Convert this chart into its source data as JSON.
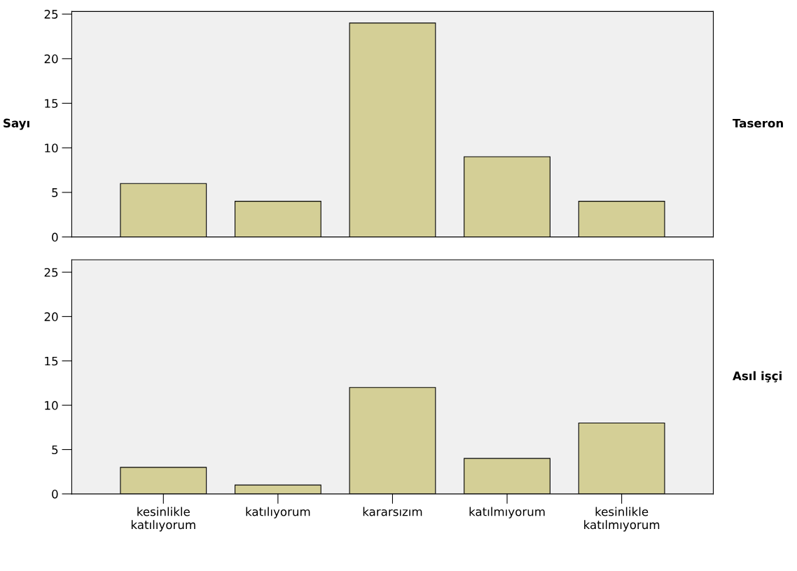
{
  "chart_data": [
    {
      "type": "bar",
      "ylabel": "Sayı",
      "annotations": [
        "Taseron"
      ],
      "categories": [
        null,
        null,
        null,
        null,
        null
      ],
      "values": [
        6,
        4,
        24,
        9,
        4
      ],
      "color": "#d4cf96",
      "ylim": [
        0,
        25.3
      ],
      "yticks": [
        0,
        5,
        10,
        15,
        20,
        25
      ],
      "grid": false,
      "tick_labels": "y"
    },
    {
      "type": "bar",
      "annotations": [
        "Asıl işçi"
      ],
      "categories": [
        "kesinlikle\nkatılıyorum",
        "katılıyorum",
        "kararsızım",
        "katılmıyorum",
        "kesinlikle\nkatılmıyorum"
      ],
      "values": [
        3,
        1,
        12,
        4,
        8
      ],
      "color": "#d4cf96",
      "ylim": [
        0,
        26.4
      ],
      "yticks": [
        0,
        5,
        10,
        15,
        20,
        25
      ],
      "grid": false
    }
  ]
}
